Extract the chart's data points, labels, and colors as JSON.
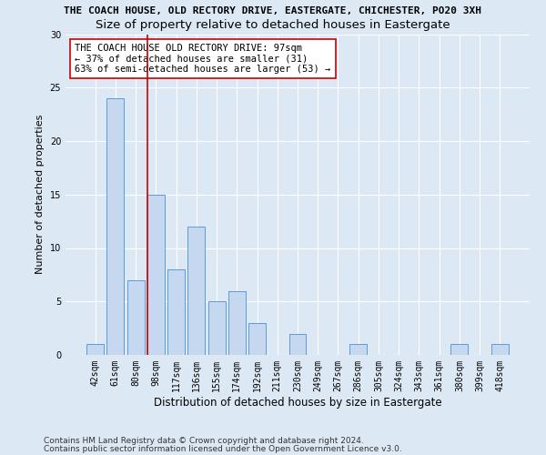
{
  "title1": "THE COACH HOUSE, OLD RECTORY DRIVE, EASTERGATE, CHICHESTER, PO20 3XH",
  "title2": "Size of property relative to detached houses in Eastergate",
  "xlabel": "Distribution of detached houses by size in Eastergate",
  "ylabel": "Number of detached properties",
  "bar_labels": [
    "42sqm",
    "61sqm",
    "80sqm",
    "98sqm",
    "117sqm",
    "136sqm",
    "155sqm",
    "174sqm",
    "192sqm",
    "211sqm",
    "230sqm",
    "249sqm",
    "267sqm",
    "286sqm",
    "305sqm",
    "324sqm",
    "343sqm",
    "361sqm",
    "380sqm",
    "399sqm",
    "418sqm"
  ],
  "bar_values": [
    1,
    24,
    7,
    15,
    8,
    12,
    5,
    6,
    3,
    0,
    2,
    0,
    0,
    1,
    0,
    0,
    0,
    0,
    1,
    0,
    1
  ],
  "bar_color": "#c5d8f0",
  "bar_edgecolor": "#5b9bd5",
  "vline_color": "#cc0000",
  "annotation_text": "THE COACH HOUSE OLD RECTORY DRIVE: 97sqm\n← 37% of detached houses are smaller (31)\n63% of semi-detached houses are larger (53) →",
  "annotation_box_color": "#ffffff",
  "annotation_box_edgecolor": "#cc0000",
  "ylim": [
    0,
    30
  ],
  "yticks": [
    0,
    5,
    10,
    15,
    20,
    25,
    30
  ],
  "footer1": "Contains HM Land Registry data © Crown copyright and database right 2024.",
  "footer2": "Contains public sector information licensed under the Open Government Licence v3.0.",
  "background_color": "#dde8f5",
  "plot_background": "#dde8f5",
  "title1_fontsize": 8.0,
  "title2_fontsize": 9.5,
  "xlabel_fontsize": 8.5,
  "ylabel_fontsize": 8.0,
  "footer_fontsize": 6.5,
  "tick_fontsize": 7.0,
  "annotation_fontsize": 7.5
}
